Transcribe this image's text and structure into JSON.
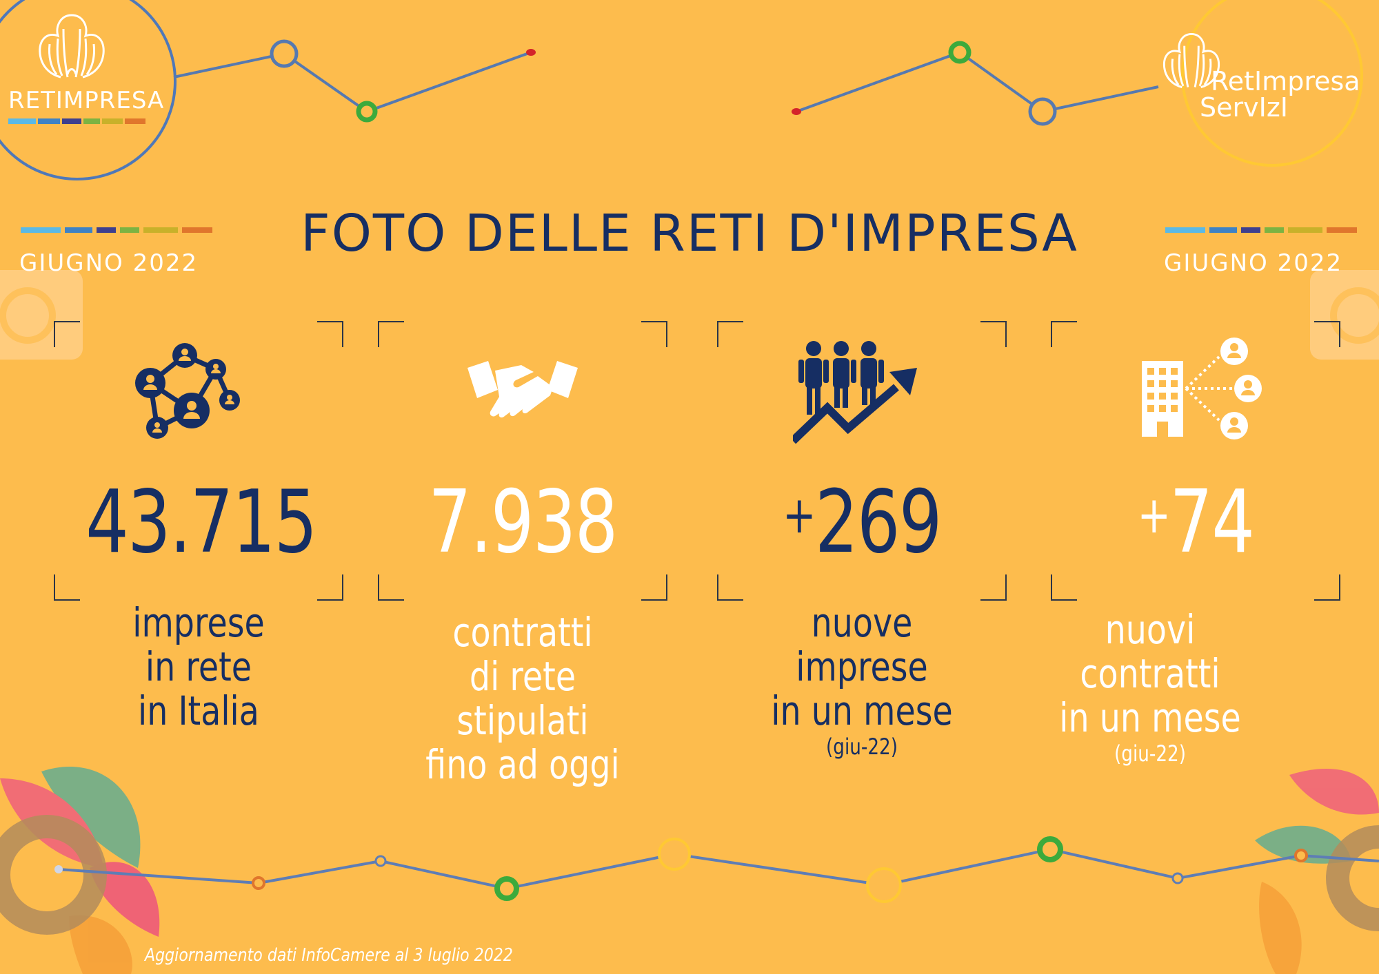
{
  "colors": {
    "background": "#FDBC4D",
    "navy": "#162E63",
    "white": "#FFFFFF",
    "ribbon": [
      "#5BB9E6",
      "#3E82C5",
      "#3E3F8E",
      "#7CB342",
      "#C8B12A",
      "#E0762C"
    ]
  },
  "logos": {
    "left": {
      "text": "RETIMPRESA"
    },
    "right": {
      "line1": "RetImpresa",
      "line2": "ServIzI"
    }
  },
  "header": {
    "title": "FOTO DELLE RETI D'IMPRESA",
    "date_left": "GIUGNO  2022",
    "date_right": "GIUGNO  2022"
  },
  "stats": [
    {
      "icon": "network-people-icon",
      "value": "43.715",
      "caption": [
        "imprese",
        "in rete",
        "in Italia"
      ],
      "sub": ""
    },
    {
      "icon": "handshake-icon",
      "value": "7.938",
      "caption": [
        "contratti",
        "di rete stipulati",
        "fino ad oggi"
      ],
      "sub": ""
    },
    {
      "icon": "people-growth-icon",
      "value_prefix": "+",
      "value": "269",
      "caption": [
        "nuove imprese",
        "in un mese"
      ],
      "sub": "(giu-22)"
    },
    {
      "icon": "building-network-icon",
      "value_prefix": "+",
      "value": "74",
      "caption": [
        "nuovi contratti",
        "in un mese"
      ],
      "sub": "(giu-22)"
    }
  ],
  "footnote": "Aggiornamento dati InfoCamere al 3 luglio 2022"
}
